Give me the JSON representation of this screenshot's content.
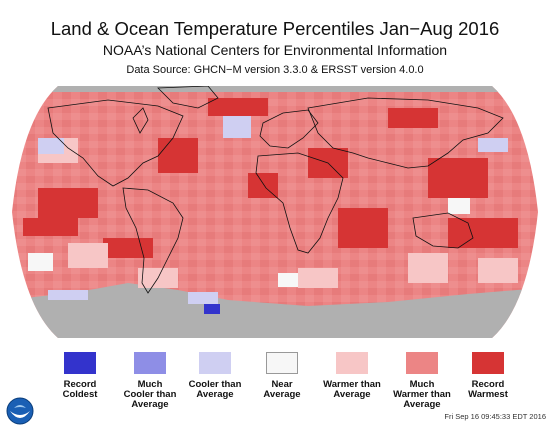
{
  "header": {
    "title": "Land & Ocean Temperature Percentiles Jan−Aug 2016",
    "subtitle": "NOAA’s National Centers for Environmental Information",
    "source": "Data Source: GHCN−M version 3.3.0 & ERSST version 4.0.0"
  },
  "map": {
    "projection": "robinson",
    "colors": {
      "no_data": "#b0b0b0",
      "land_outline": "#111111",
      "background": "#ffffff"
    },
    "dominant_category": "Warmer than Average"
  },
  "legend": {
    "items": [
      {
        "line1": "Record",
        "line2": "Coldest",
        "line3": "",
        "color": "#3333cc"
      },
      {
        "line1": "Much",
        "line2": "Cooler than",
        "line3": "Average",
        "color": "#8e8ee6"
      },
      {
        "line1": "Cooler than",
        "line2": "Average",
        "line3": "",
        "color": "#cfcff2"
      },
      {
        "line1": "Near",
        "line2": "Average",
        "line3": "",
        "color": "#f7f7f7"
      },
      {
        "line1": "Warmer than",
        "line2": "Average",
        "line3": "",
        "color": "#f7c6c6"
      },
      {
        "line1": "Much",
        "line2": "Warmer than",
        "line3": "Average",
        "color": "#ec8585"
      },
      {
        "line1": "Record",
        "line2": "Warmest",
        "line3": "",
        "color": "#d63434"
      }
    ]
  },
  "footer": {
    "timestamp": "Fri Sep 16 09:45:33 EDT 2016",
    "logo_icon": "noaa-logo-icon"
  }
}
